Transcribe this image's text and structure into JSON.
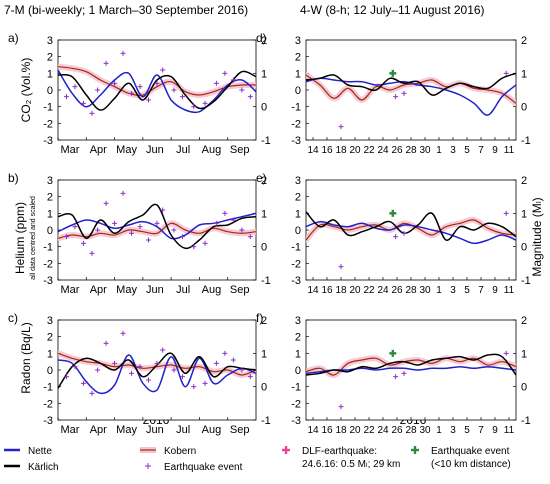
{
  "header_left": "7-M (bi-weekly; 1 March–30 September 2016)",
  "header_right": "4-W (8-h; 12 July–11 August 2016)",
  "left_ylabels": {
    "co2": "CO₂ (Vol.%)",
    "helium": "Helium (ppm)",
    "helium_note": "all data centred and scaled",
    "radon": "Radon (Bq/L)"
  },
  "right_ylabel": "Magnitude (Mₗ)",
  "left_xlabel": "2016",
  "right_xlabel": "2016",
  "colors": {
    "nette": "#2222cc",
    "kaerlich": "#000000",
    "kobern": "#a52a0a",
    "kobern_fill": "#f4c2d2",
    "quake": "#8b2fc9",
    "dlf": "#e8459a",
    "near": "#2e8b3e"
  },
  "legend": [
    {
      "key": "nette",
      "label": "Nette"
    },
    {
      "key": "kaerlich",
      "label": "Kärlich"
    },
    {
      "key": "kobern",
      "label": "Kobern"
    },
    {
      "key": "quake",
      "label": "Earthquake event"
    },
    {
      "key": "dlf",
      "label": "DLF-earthquake:",
      "label2": "24.6.16: 0.5 Mₗ; 29 km"
    },
    {
      "key": "near",
      "label": "Earthquake event",
      "label2": "(<10 km distance)"
    }
  ],
  "chart_data": [
    {
      "panel": "a)",
      "type": "line",
      "x_ticks": [
        "Mar",
        "Apr",
        "May",
        "Jun",
        "Jul",
        "Aug",
        "Sep"
      ],
      "ylim": [
        -3,
        3
      ],
      "yticks": [
        -3,
        -2,
        -1,
        0,
        1,
        2,
        3
      ],
      "y2lim": [
        -1,
        2
      ],
      "y2ticks": [
        -1,
        0,
        1,
        2
      ],
      "series": [
        {
          "name": "Nette",
          "key": "nette",
          "x": [
            0,
            0.5,
            1,
            1.5,
            2,
            2.5,
            3,
            3.5,
            4,
            4.5,
            5,
            5.5,
            6,
            6.5,
            7
          ],
          "y": [
            1.2,
            -0.2,
            -1.0,
            -0.3,
            0.6,
            1.0,
            -0.4,
            0.9,
            -0.6,
            -1.2,
            -1.3,
            -0.6,
            0.3,
            0.6,
            -0.1
          ]
        },
        {
          "name": "Kärlich",
          "key": "kaerlich",
          "x": [
            0,
            0.5,
            1,
            1.5,
            2,
            2.5,
            3,
            3.5,
            4,
            4.5,
            5,
            5.5,
            6,
            6.5,
            7
          ],
          "y": [
            0.9,
            0.8,
            -0.3,
            -1.2,
            -0.5,
            0.4,
            -0.6,
            0.6,
            0.8,
            -0.3,
            -1.1,
            -0.7,
            0.2,
            1.1,
            0.8
          ]
        },
        {
          "name": "Kobern",
          "key": "kobern",
          "x": [
            0,
            0.5,
            1,
            1.5,
            2,
            2.5,
            3,
            3.5,
            4,
            4.5,
            5,
            5.5,
            6,
            6.5,
            7
          ],
          "y": [
            1.4,
            1.3,
            1.1,
            0.6,
            0.2,
            -0.2,
            -0.3,
            0.2,
            0.5,
            -0.1,
            -0.3,
            -0.1,
            0.2,
            0.3,
            0.3
          ]
        }
      ],
      "quakes_x": [
        0.3,
        0.6,
        0.9,
        1.2,
        1.4,
        1.7,
        2.0,
        2.3,
        2.6,
        2.9,
        3.2,
        3.5,
        3.7,
        4.1,
        4.4,
        4.8,
        5.2,
        5.6,
        5.9,
        6.2,
        6.5,
        6.8
      ],
      "quakes_m": [
        0.3,
        0.6,
        0.1,
        -0.2,
        0.5,
        1.3,
        0.7,
        1.6,
        0.4,
        0.6,
        0.2,
        0.7,
        1.1,
        0.5,
        0.3,
        0.0,
        0.1,
        0.7,
        1.0,
        0.8,
        0.5,
        0.3
      ]
    },
    {
      "panel": "b)",
      "type": "line",
      "x_ticks": [
        "Mar",
        "Apr",
        "May",
        "Jun",
        "Jul",
        "Aug",
        "Sep"
      ],
      "ylim": [
        -3,
        3
      ],
      "yticks": [
        -3,
        -2,
        -1,
        0,
        1,
        2,
        3
      ],
      "y2lim": [
        -1,
        2
      ],
      "y2ticks": [
        -1,
        0,
        1,
        2
      ],
      "series": [
        {
          "name": "Nette",
          "key": "nette",
          "x": [
            0,
            0.5,
            1,
            1.5,
            2,
            2.5,
            3,
            3.5,
            4,
            4.5,
            5,
            5.5,
            6,
            6.5,
            7
          ],
          "y": [
            -0.1,
            0.3,
            0.6,
            0.4,
            0.1,
            0.3,
            0.5,
            0.2,
            -0.5,
            -0.3,
            0.3,
            0.4,
            0.6,
            0.8,
            1.0
          ]
        },
        {
          "name": "Kärlich",
          "key": "kaerlich",
          "x": [
            0,
            0.5,
            1,
            1.5,
            2,
            2.5,
            3,
            3.5,
            4,
            4.5,
            5,
            5.5,
            6,
            6.5,
            7
          ],
          "y": [
            0.8,
            0.9,
            -0.5,
            0.6,
            -0.2,
            0.5,
            0.9,
            1.5,
            -0.3,
            -1.1,
            -0.6,
            0.2,
            0.3,
            0.7,
            0.8
          ]
        },
        {
          "name": "Kobern",
          "key": "kobern",
          "x": [
            0,
            0.5,
            1,
            1.5,
            2,
            2.5,
            3,
            3.5,
            4,
            4.5,
            5,
            5.5,
            6,
            6.5,
            7
          ],
          "y": [
            -0.5,
            -0.3,
            -0.4,
            -0.2,
            -0.3,
            0.0,
            -0.1,
            -0.2,
            0.4,
            0.0,
            -0.2,
            0.1,
            -0.1,
            -0.2,
            -0.1
          ]
        }
      ],
      "quakes_x": [
        0.3,
        0.6,
        0.9,
        1.2,
        1.4,
        1.7,
        2.0,
        2.3,
        2.6,
        2.9,
        3.2,
        3.5,
        3.7,
        4.1,
        4.4,
        4.8,
        5.2,
        5.6,
        5.9,
        6.2,
        6.5,
        6.8
      ],
      "quakes_m": [
        0.3,
        0.6,
        0.1,
        -0.2,
        0.5,
        1.3,
        0.7,
        1.6,
        0.4,
        0.6,
        0.2,
        0.7,
        1.1,
        0.5,
        0.3,
        0.0,
        0.1,
        0.7,
        1.0,
        0.8,
        0.5,
        0.3
      ]
    },
    {
      "panel": "c)",
      "type": "line",
      "x_ticks": [
        "Mar",
        "Apr",
        "May",
        "Jun",
        "Jul",
        "Aug",
        "Sep"
      ],
      "ylim": [
        -3,
        3
      ],
      "yticks": [
        -3,
        -2,
        -1,
        0,
        1,
        2,
        3
      ],
      "y2lim": [
        -1,
        2
      ],
      "y2ticks": [
        -1,
        0,
        1,
        2
      ],
      "series": [
        {
          "name": "Nette",
          "key": "nette",
          "x": [
            0,
            0.5,
            1,
            1.5,
            2,
            2.5,
            3,
            3.5,
            4,
            4.5,
            5,
            5.5,
            6,
            6.5,
            7
          ],
          "y": [
            0.6,
            0.4,
            -0.7,
            -1.4,
            -0.9,
            0.9,
            -0.8,
            -1.2,
            0.8,
            -1.0,
            0.7,
            -0.8,
            -0.3,
            0.1,
            -0.2
          ]
        },
        {
          "name": "Kärlich",
          "key": "kaerlich",
          "x": [
            0,
            0.5,
            1,
            1.5,
            2,
            2.5,
            3,
            3.5,
            4,
            4.5,
            5,
            5.5,
            6,
            6.5,
            7
          ],
          "y": [
            -1.1,
            0.2,
            0.7,
            0.4,
            0.0,
            0.6,
            -0.4,
            0.3,
            1.0,
            -0.2,
            0.8,
            -0.4,
            0.2,
            0.1,
            0.0
          ]
        },
        {
          "name": "Kobern",
          "key": "kobern",
          "x": [
            0,
            0.5,
            1,
            1.5,
            2,
            2.5,
            3,
            3.5,
            4,
            4.5,
            5,
            5.5,
            6,
            6.5,
            7
          ],
          "y": [
            1.0,
            0.7,
            0.5,
            0.4,
            0.2,
            0.3,
            0.1,
            0.2,
            0.3,
            0.1,
            0.2,
            -0.1,
            0.0,
            -0.3,
            0.0
          ]
        }
      ],
      "quakes_x": [
        0.3,
        0.6,
        0.9,
        1.2,
        1.4,
        1.7,
        2.0,
        2.3,
        2.6,
        2.9,
        3.2,
        3.5,
        3.7,
        4.1,
        4.4,
        4.8,
        5.2,
        5.6,
        5.9,
        6.2,
        6.5,
        6.8
      ],
      "quakes_m": [
        0.3,
        0.6,
        0.1,
        -0.2,
        0.5,
        1.3,
        0.7,
        1.6,
        0.4,
        0.6,
        0.2,
        0.7,
        1.1,
        0.5,
        0.3,
        0.0,
        0.1,
        0.7,
        1.0,
        0.8,
        0.5,
        0.3
      ]
    },
    {
      "panel": "d)",
      "type": "line",
      "x_ticks": [
        "14",
        "16",
        "18",
        "20",
        "22",
        "24",
        "26",
        "28",
        "30",
        "1",
        "3",
        "5",
        "7",
        "9",
        "11"
      ],
      "ylim": [
        -3,
        3
      ],
      "yticks": [
        -3,
        -2,
        -1,
        0,
        1,
        2,
        3
      ],
      "y2lim": [
        -1,
        2
      ],
      "y2ticks": [
        -1,
        0,
        1,
        2
      ],
      "series": [
        {
          "name": "Nette",
          "key": "nette",
          "x": [
            0,
            1,
            2,
            3,
            4,
            5,
            6,
            7,
            8,
            9,
            10,
            11,
            12,
            13,
            14,
            15
          ],
          "y": [
            0.5,
            0.7,
            0.6,
            0.5,
            0.5,
            0.3,
            0.4,
            0.5,
            0.3,
            0.2,
            0.0,
            -0.3,
            -0.8,
            -1.5,
            -0.4,
            0.3
          ]
        },
        {
          "name": "Kärlich",
          "key": "kaerlich",
          "x": [
            0,
            1,
            2,
            3,
            4,
            5,
            6,
            7,
            8,
            9,
            10,
            11,
            12,
            13,
            14,
            15
          ],
          "y": [
            0.6,
            0.7,
            0.9,
            0.3,
            0.2,
            0.0,
            0.7,
            0.4,
            0.5,
            -0.3,
            0.1,
            0.4,
            0.2,
            0.1,
            0.7,
            1.0
          ]
        },
        {
          "name": "Kobern",
          "key": "kobern",
          "x": [
            0,
            1,
            2,
            3,
            4,
            5,
            6,
            7,
            8,
            9,
            10,
            11,
            12,
            13,
            14,
            15
          ],
          "y": [
            0.9,
            0.3,
            -0.5,
            0.1,
            -0.6,
            0.2,
            0.0,
            0.3,
            0.4,
            0.6,
            0.2,
            0.4,
            0.1,
            0.0,
            -0.2,
            -0.8
          ]
        }
      ],
      "quakes_x": [
        2.5,
        6.4,
        7.0,
        14.3
      ],
      "quakes_m": [
        -0.6,
        0.3,
        0.4,
        1.0
      ],
      "near_x": [
        6.2
      ],
      "near_m": [
        1.0
      ]
    },
    {
      "panel": "e)",
      "type": "line",
      "x_ticks": [
        "14",
        "16",
        "18",
        "20",
        "22",
        "24",
        "26",
        "28",
        "30",
        "1",
        "3",
        "5",
        "7",
        "9",
        "11"
      ],
      "ylim": [
        -3,
        3
      ],
      "yticks": [
        -3,
        -2,
        -1,
        0,
        1,
        2,
        3
      ],
      "y2lim": [
        -1,
        2
      ],
      "y2ticks": [
        -1,
        0,
        1,
        2
      ],
      "series": [
        {
          "name": "Nette",
          "key": "nette",
          "x": [
            0,
            1,
            2,
            3,
            4,
            5,
            6,
            7,
            8,
            9,
            10,
            11,
            12,
            13,
            14,
            15
          ],
          "y": [
            0.2,
            0.5,
            0.3,
            0.2,
            0.4,
            0.1,
            0.0,
            0.3,
            0.2,
            0.0,
            -0.2,
            -0.5,
            -0.8,
            -0.6,
            -0.3,
            -0.6
          ]
        },
        {
          "name": "Kärlich",
          "key": "kaerlich",
          "x": [
            0,
            1,
            2,
            3,
            4,
            5,
            6,
            7,
            8,
            9,
            10,
            11,
            12,
            13,
            14,
            15
          ],
          "y": [
            1.1,
            0.2,
            0.6,
            -0.3,
            -0.1,
            0.2,
            0.5,
            -0.2,
            0.3,
            1.0,
            -0.6,
            0.2,
            0.0,
            0.4,
            0.2,
            -0.4
          ]
        },
        {
          "name": "Kobern",
          "key": "kobern",
          "x": [
            0,
            1,
            2,
            3,
            4,
            5,
            6,
            7,
            8,
            9,
            10,
            11,
            12,
            13,
            14,
            15
          ],
          "y": [
            -0.6,
            0.3,
            0.2,
            0.0,
            0.2,
            0.3,
            0.0,
            0.4,
            0.1,
            -0.3,
            0.2,
            0.4,
            0.6,
            0.1,
            -0.2,
            -0.3
          ]
        }
      ],
      "quakes_x": [
        2.5,
        6.4,
        7.0,
        14.3
      ],
      "quakes_m": [
        -0.6,
        0.3,
        0.4,
        1.0
      ],
      "near_x": [
        6.2
      ],
      "near_m": [
        1.0
      ]
    },
    {
      "panel": "f)",
      "type": "line",
      "x_ticks": [
        "14",
        "16",
        "18",
        "20",
        "22",
        "24",
        "26",
        "28",
        "30",
        "1",
        "3",
        "5",
        "7",
        "9",
        "11"
      ],
      "ylim": [
        -3,
        3
      ],
      "yticks": [
        -3,
        -2,
        -1,
        0,
        1,
        2,
        3
      ],
      "y2lim": [
        -1,
        2
      ],
      "y2ticks": [
        -1,
        0,
        1,
        2
      ],
      "series": [
        {
          "name": "Nette",
          "key": "nette",
          "x": [
            0,
            1,
            2,
            3,
            4,
            5,
            6,
            7,
            8,
            9,
            10,
            11,
            12,
            13,
            14,
            15
          ],
          "y": [
            -0.2,
            -0.1,
            0.0,
            0.0,
            0.1,
            0.0,
            0.1,
            0.1,
            0.0,
            0.1,
            0.1,
            0.2,
            0.1,
            0.2,
            0.1,
            0.0
          ]
        },
        {
          "name": "Kärlich",
          "key": "kaerlich",
          "x": [
            0,
            1,
            2,
            3,
            4,
            5,
            6,
            7,
            8,
            9,
            10,
            11,
            12,
            13,
            14,
            15
          ],
          "y": [
            -0.3,
            -0.2,
            0.0,
            -0.1,
            0.2,
            0.1,
            0.4,
            0.5,
            0.3,
            0.6,
            0.7,
            0.8,
            0.6,
            0.9,
            0.8,
            -0.3
          ]
        },
        {
          "name": "Kobern",
          "key": "kobern",
          "x": [
            0,
            1,
            2,
            3,
            4,
            5,
            6,
            7,
            8,
            9,
            10,
            11,
            12,
            13,
            14,
            15
          ],
          "y": [
            -0.1,
            0.1,
            -0.3,
            0.4,
            0.6,
            0.7,
            0.3,
            0.5,
            0.6,
            0.4,
            0.7,
            0.5,
            0.7,
            0.3,
            0.5,
            0.2
          ]
        }
      ],
      "quakes_x": [
        2.5,
        6.4,
        7.0,
        14.3
      ],
      "quakes_m": [
        -0.6,
        0.3,
        0.4,
        1.0
      ],
      "near_x": [
        6.2
      ],
      "near_m": [
        1.0
      ]
    }
  ]
}
